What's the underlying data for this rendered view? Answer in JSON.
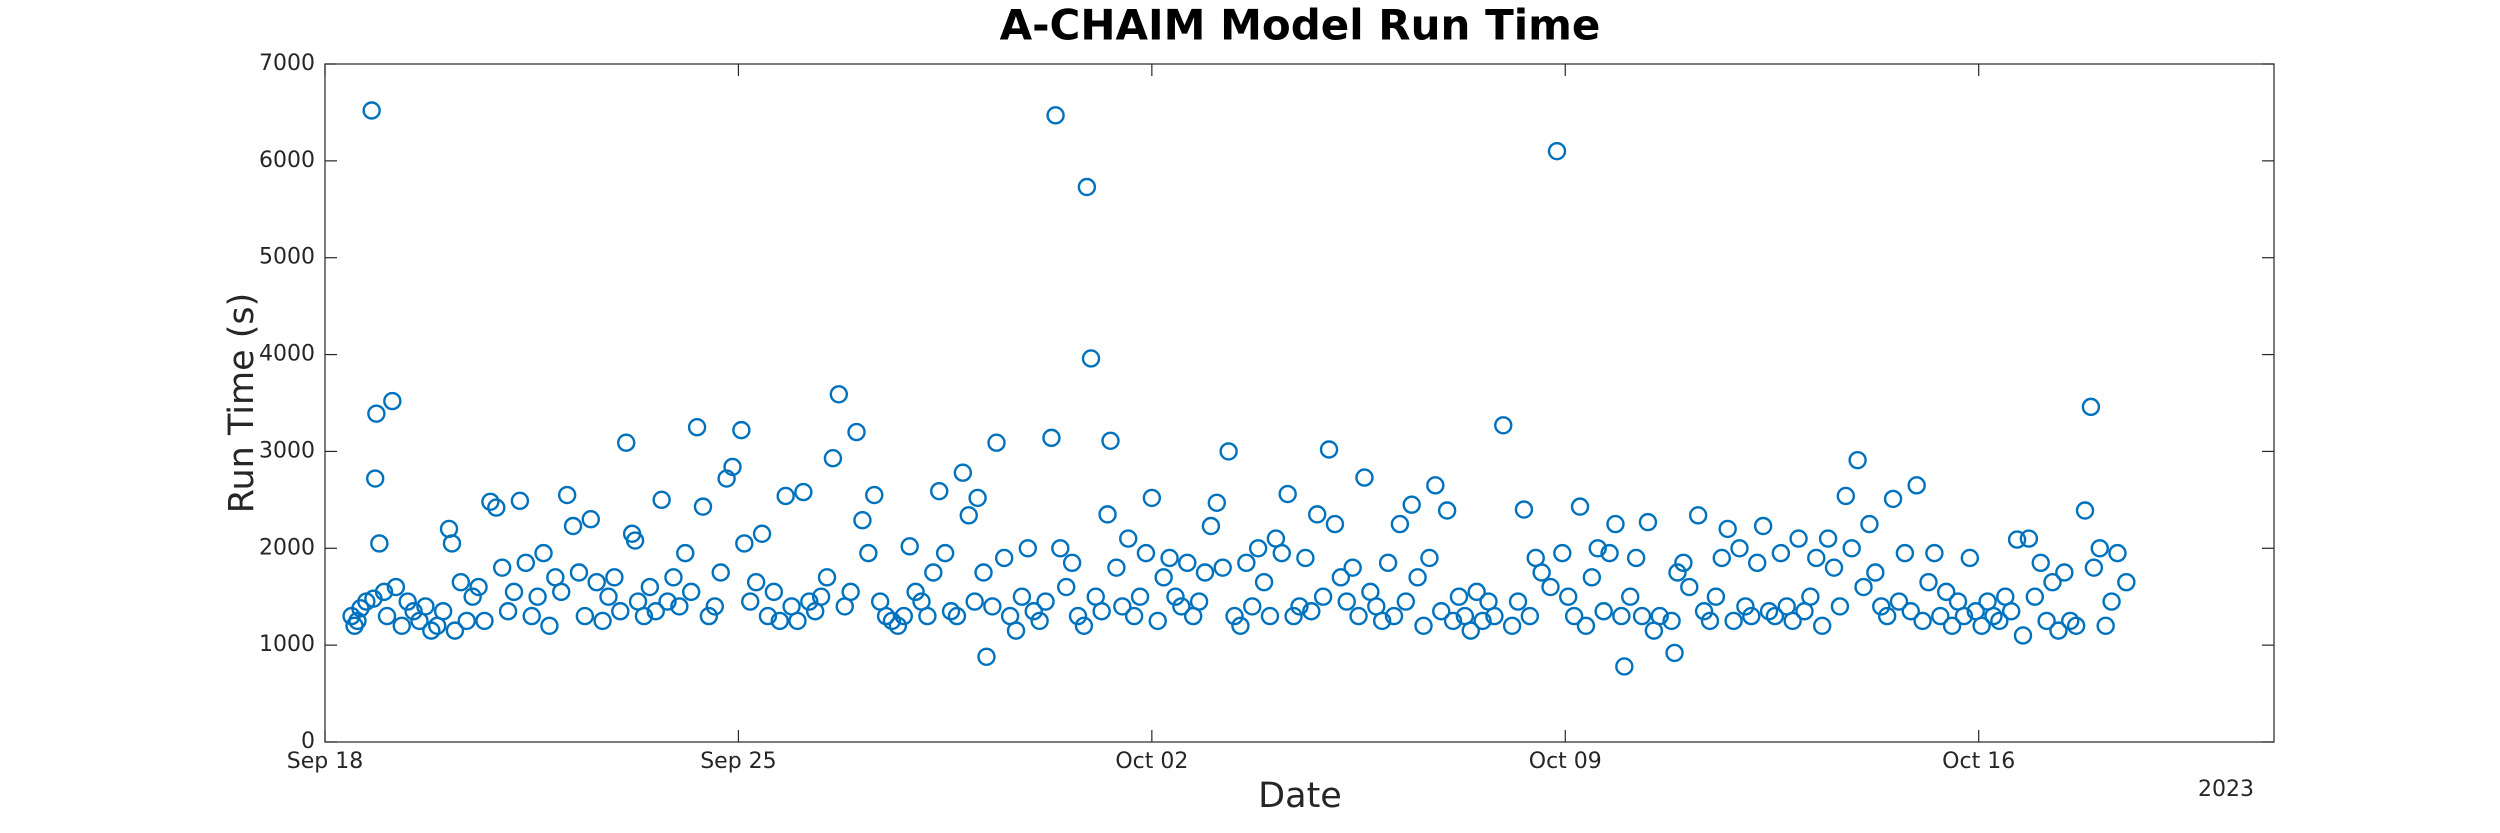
{
  "chart_data": {
    "type": "scatter",
    "title": "A-CHAIM Model Run Time",
    "x_label": "Date",
    "y_label": "Run Time (s)",
    "year_label": "2023",
    "xlim": [
      0,
      33
    ],
    "xticks": [
      {
        "value": 0,
        "label": "Sep 18"
      },
      {
        "value": 7,
        "label": "Sep 25"
      },
      {
        "value": 14,
        "label": "Oct 02"
      },
      {
        "value": 21,
        "label": "Oct 09"
      },
      {
        "value": 28,
        "label": "Oct 16"
      }
    ],
    "ylim": [
      0,
      7000
    ],
    "yticks": [
      0,
      1000,
      2000,
      3000,
      4000,
      5000,
      6000,
      7000
    ],
    "grid": false,
    "color": "#0072bd",
    "x": [
      0.45,
      0.5,
      0.55,
      0.6,
      0.7,
      0.79,
      0.82,
      0.85,
      0.87,
      0.92,
      1.0,
      1.05,
      1.14,
      1.2,
      1.3,
      1.4,
      1.5,
      1.6,
      1.7,
      1.8,
      1.9,
      2.0,
      2.1,
      2.15,
      2.2,
      2.3,
      2.4,
      2.5,
      2.6,
      2.7,
      2.8,
      2.9,
      3.0,
      3.1,
      3.2,
      3.3,
      3.4,
      3.5,
      3.6,
      3.7,
      3.8,
      3.9,
      4.0,
      4.1,
      4.2,
      4.3,
      4.4,
      4.5,
      4.6,
      4.7,
      4.8,
      4.9,
      5.0,
      5.1,
      5.2,
      5.25,
      5.3,
      5.4,
      5.5,
      5.6,
      5.7,
      5.8,
      5.9,
      6.0,
      6.1,
      6.2,
      6.3,
      6.4,
      6.5,
      6.6,
      6.7,
      6.8,
      6.9,
      7.05,
      7.1,
      7.2,
      7.3,
      7.4,
      7.5,
      7.6,
      7.7,
      7.8,
      7.9,
      8.0,
      8.1,
      8.2,
      8.3,
      8.4,
      8.5,
      8.6,
      8.7,
      8.8,
      8.9,
      9.0,
      9.1,
      9.2,
      9.3,
      9.4,
      9.5,
      9.6,
      9.7,
      9.8,
      9.9,
      10.0,
      10.1,
      10.2,
      10.3,
      10.4,
      10.5,
      10.6,
      10.7,
      10.8,
      10.9,
      11.0,
      11.05,
      11.15,
      11.2,
      11.3,
      11.37,
      11.5,
      11.6,
      11.7,
      11.8,
      11.9,
      12.0,
      12.1,
      12.2,
      12.3,
      12.37,
      12.45,
      12.55,
      12.65,
      12.75,
      12.85,
      12.9,
      12.97,
      13.05,
      13.15,
      13.25,
      13.3,
      13.4,
      13.5,
      13.6,
      13.7,
      13.8,
      13.9,
      14.0,
      14.1,
      14.2,
      14.3,
      14.4,
      14.5,
      14.6,
      14.7,
      14.8,
      14.9,
      15.0,
      15.1,
      15.2,
      15.3,
      15.4,
      15.5,
      15.6,
      15.7,
      15.8,
      15.9,
      16.0,
      16.1,
      16.2,
      16.3,
      16.4,
      16.5,
      16.6,
      16.7,
      16.8,
      16.9,
      17.0,
      17.1,
      17.2,
      17.3,
      17.4,
      17.5,
      17.6,
      17.7,
      17.8,
      17.9,
      18.0,
      18.1,
      18.2,
      18.3,
      18.4,
      18.5,
      18.6,
      18.7,
      18.8,
      18.9,
      19.0,
      19.1,
      19.2,
      19.3,
      19.4,
      19.5,
      19.6,
      19.7,
      19.8,
      19.95,
      20.1,
      20.2,
      20.3,
      20.4,
      20.5,
      20.6,
      20.75,
      20.86,
      20.95,
      21.05,
      21.15,
      21.25,
      21.35,
      21.45,
      21.55,
      21.65,
      21.75,
      21.85,
      21.95,
      22.0,
      22.1,
      22.2,
      22.3,
      22.4,
      22.5,
      22.6,
      22.8,
      22.85,
      22.9,
      23.0,
      23.1,
      23.25,
      23.35,
      23.45,
      23.55,
      23.65,
      23.75,
      23.85,
      23.95,
      24.05,
      24.15,
      24.25,
      24.35,
      24.45,
      24.55,
      24.65,
      24.75,
      24.85,
      24.95,
      25.05,
      25.15,
      25.25,
      25.35,
      25.45,
      25.55,
      25.65,
      25.75,
      25.85,
      25.95,
      26.05,
      26.15,
      26.25,
      26.35,
      26.45,
      26.55,
      26.65,
      26.75,
      26.85,
      26.95,
      27.05,
      27.15,
      27.25,
      27.35,
      27.45,
      27.55,
      27.65,
      27.75,
      27.85,
      27.95,
      28.05,
      28.15,
      28.25,
      28.35,
      28.45,
      28.55,
      28.65,
      28.75,
      28.85,
      28.95,
      29.05,
      29.15,
      29.25,
      29.35,
      29.45,
      29.55,
      29.65,
      29.8,
      29.9,
      29.95,
      30.05,
      30.15,
      30.25,
      30.35,
      30.5
    ],
    "values": [
      1300,
      1200,
      1250,
      1380,
      1450,
      6520,
      1480,
      2720,
      3390,
      2050,
      1550,
      1300,
      3520,
      1600,
      1200,
      1450,
      1350,
      1250,
      1400,
      1150,
      1200,
      1350,
      2200,
      2050,
      1150,
      1650,
      1250,
      1500,
      1600,
      1250,
      2480,
      2420,
      1800,
      1350,
      1550,
      2490,
      1850,
      1300,
      1500,
      1950,
      1200,
      1700,
      1550,
      2550,
      2230,
      1750,
      1300,
      2300,
      1650,
      1250,
      1500,
      1700,
      1350,
      3090,
      2150,
      2080,
      1450,
      1300,
      1600,
      1350,
      2500,
      1450,
      1700,
      1400,
      1950,
      1550,
      3250,
      2430,
      1300,
      1400,
      1750,
      2720,
      2840,
      3220,
      2050,
      1450,
      1650,
      2150,
      1300,
      1550,
      1250,
      2540,
      1400,
      1250,
      2580,
      1450,
      1350,
      1500,
      1700,
      2930,
      3590,
      1400,
      1550,
      3200,
      2290,
      1950,
      2550,
      1450,
      1300,
      1250,
      1200,
      1300,
      2020,
      1550,
      1450,
      1300,
      1750,
      2590,
      1950,
      1350,
      1300,
      2780,
      2340,
      1450,
      2520,
      1750,
      880,
      1400,
      3090,
      1900,
      1300,
      1150,
      1500,
      2000,
      1350,
      1250,
      1450,
      3140,
      6470,
      2000,
      1600,
      1850,
      1300,
      1200,
      5730,
      3960,
      1500,
      1350,
      2350,
      3110,
      1800,
      1400,
      2100,
      1300,
      1500,
      1950,
      2520,
      1250,
      1700,
      1900,
      1500,
      1400,
      1850,
      1300,
      1450,
      1750,
      2230,
      2470,
      1800,
      3000,
      1300,
      1200,
      1850,
      1400,
      2000,
      1650,
      1300,
      2100,
      1950,
      2560,
      1300,
      1400,
      1900,
      1350,
      2350,
      1500,
      3020,
      2250,
      1700,
      1450,
      1800,
      1300,
      2730,
      1550,
      1400,
      1250,
      1850,
      1300,
      2250,
      1450,
      2450,
      1700,
      1200,
      1900,
      2650,
      1350,
      2390,
      1250,
      1500,
      1300,
      1150,
      1550,
      1250,
      1450,
      1300,
      3270,
      1200,
      1450,
      2400,
      1300,
      1900,
      1750,
      1600,
      6100,
      1950,
      1500,
      1300,
      2430,
      1200,
      1700,
      2000,
      1350,
      1950,
      2250,
      1300,
      780,
      1500,
      1900,
      1300,
      2270,
      1150,
      1300,
      1250,
      920,
      1750,
      1850,
      1600,
      2340,
      1350,
      1250,
      1500,
      1900,
      2200,
      1250,
      2000,
      1400,
      1300,
      1850,
      2230,
      1350,
      1300,
      1950,
      1400,
      1250,
      2100,
      1350,
      1500,
      1900,
      1200,
      2100,
      1800,
      1400,
      2540,
      2000,
      2910,
      1600,
      2250,
      1750,
      1400,
      1300,
      2510,
      1450,
      1950,
      1350,
      2650,
      1250,
      1650,
      1950,
      1300,
      1550,
      1200,
      1450,
      1300,
      1900,
      1350,
      1200,
      1450,
      1300,
      1250,
      1500,
      1350,
      2090,
      1100,
      2100,
      1500,
      1850,
      1250,
      1650,
      1150,
      1750,
      1250,
      1200,
      2390,
      3460,
      1800,
      2000,
      1200,
      1450,
      1950,
      1650
    ]
  }
}
